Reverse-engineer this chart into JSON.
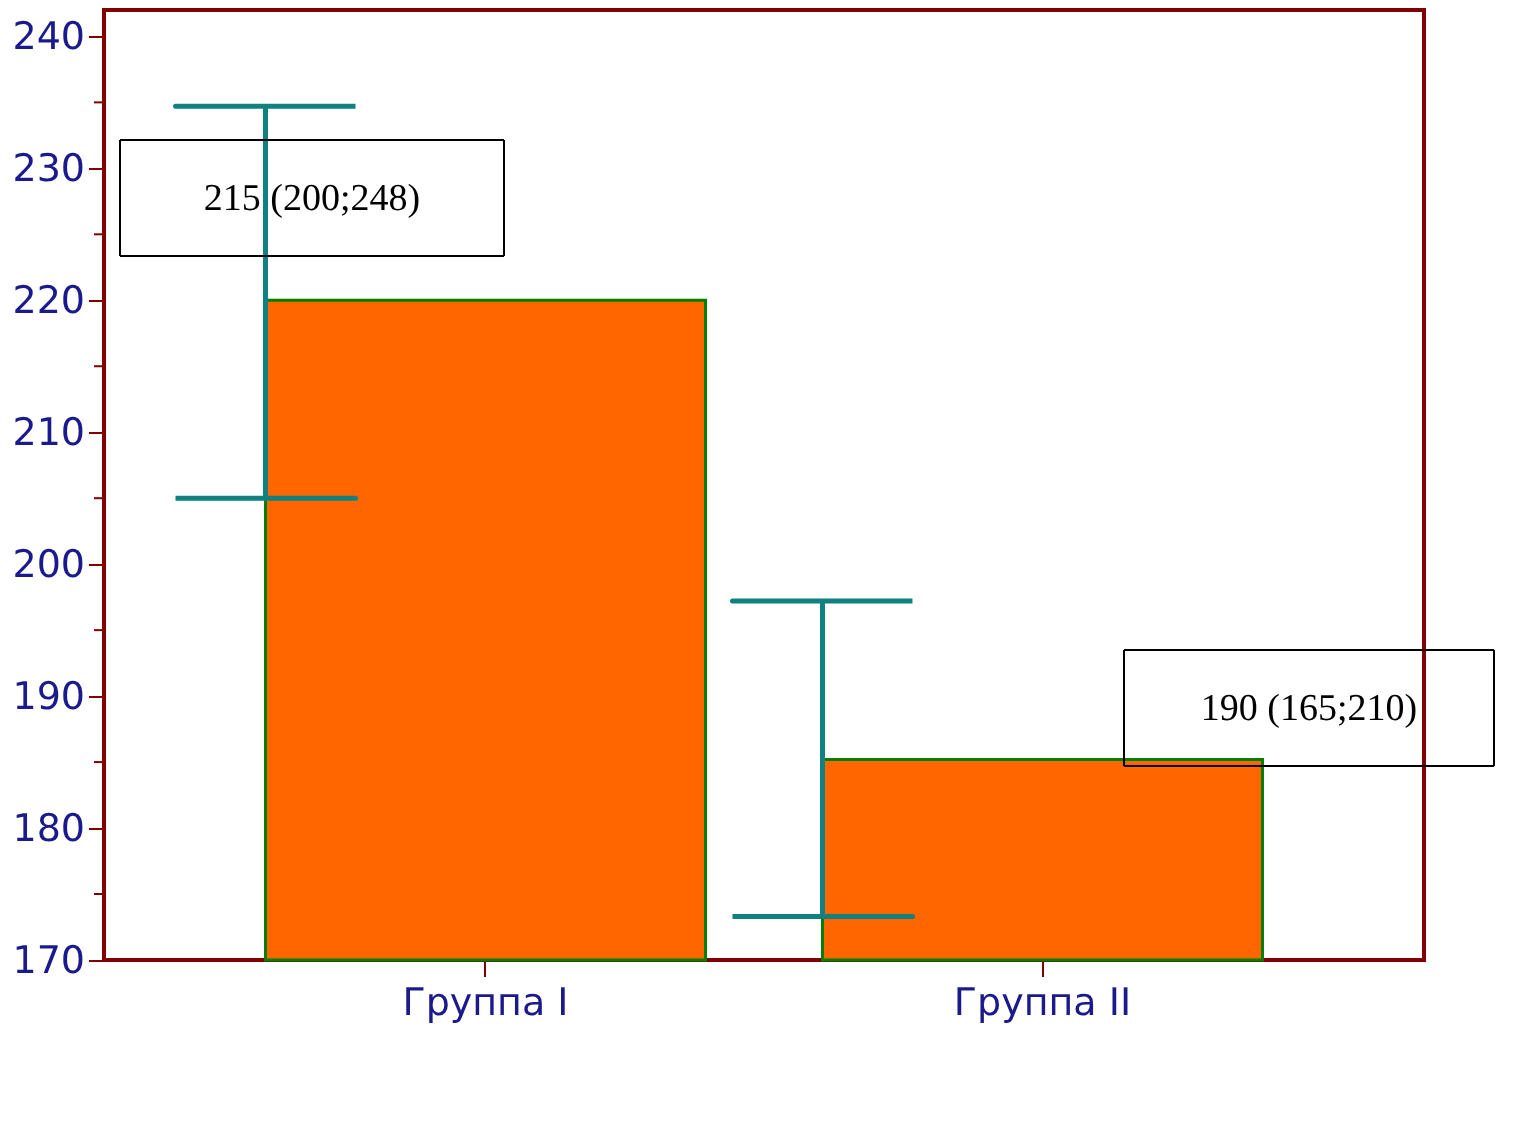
{
  "chart_data": {
    "type": "bar",
    "categories": [
      "Группа I",
      "Группа II"
    ],
    "values": [
      220,
      185.2
    ],
    "color": "#ff6600",
    "errors": [
      [
        205,
        234.7
      ],
      [
        173.3,
        197.2
      ]
    ],
    "ylim": [
      170,
      242
    ],
    "yticks": [
      170,
      {
        "value": 175,
        "label": null
      },
      180,
      {
        "value": 185,
        "label": null
      },
      190,
      {
        "value": 195,
        "label": null
      },
      200,
      {
        "value": 205,
        "label": null
      },
      210,
      {
        "value": 215,
        "label": null
      },
      220,
      {
        "value": 225,
        "label": null
      },
      230,
      {
        "value": 235,
        "label": null
      },
      240
    ],
    "annotations": [
      "215 (200;248)",
      "190 (165;210)"
    ],
    "grid": false
  }
}
